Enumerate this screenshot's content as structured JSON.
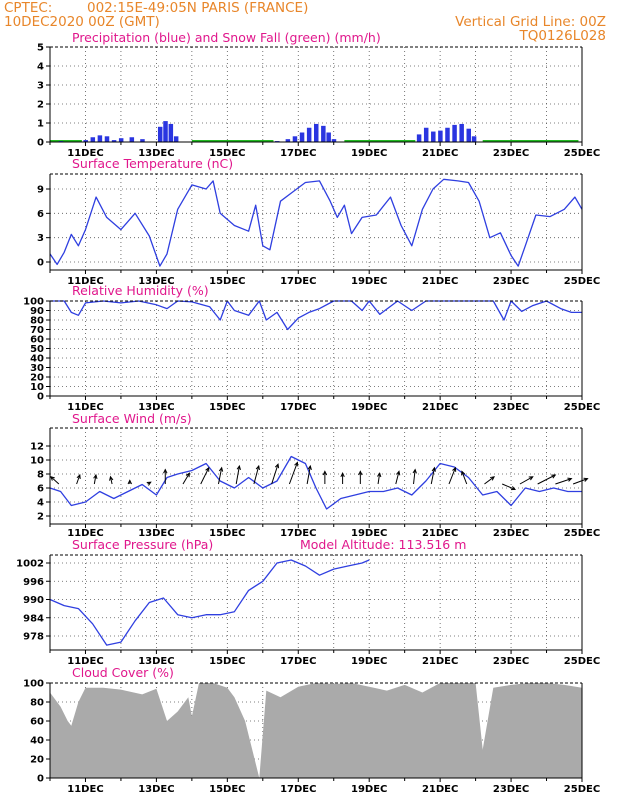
{
  "header": {
    "source": "CPTEC:",
    "location": "002:15E-49:05N   PARIS (FRANCE)",
    "date": "10DEC2020 00Z (GMT)",
    "grid_note": "Vertical Grid Line: 00Z",
    "code": "TQ0126L028"
  },
  "colors": {
    "header": "#e8862a",
    "title": "#e0178c",
    "line": "#2f3fe0",
    "precip": "#2a35e0",
    "snow": "#22bb22",
    "cloud": "#aaaaaa",
    "arrow": "#000000"
  },
  "date_labels": [
    "11DEC",
    "13DEC",
    "15DEC",
    "17DEC",
    "19DEC",
    "21DEC",
    "23DEC",
    "25DEC"
  ],
  "chart_data": [
    {
      "type": "bar",
      "title": "Precipitation (blue) and Snow Fall (green) (mm/h)",
      "x_range_days": [
        10,
        25
      ],
      "ylim": [
        0,
        5
      ],
      "yticks": [
        "0",
        "1",
        "2",
        "3",
        "4",
        "5"
      ],
      "x": [
        10.3,
        11.0,
        11.2,
        11.4,
        11.6,
        11.8,
        12.0,
        12.3,
        12.6,
        13.1,
        13.25,
        13.4,
        13.55,
        16.4,
        16.7,
        16.9,
        17.1,
        17.3,
        17.5,
        17.7,
        17.85,
        18.0,
        20.4,
        20.6,
        20.8,
        21.0,
        21.2,
        21.4,
        21.6,
        21.8,
        21.95
      ],
      "values": [
        0.05,
        0.1,
        0.25,
        0.35,
        0.3,
        0.1,
        0.2,
        0.25,
        0.15,
        0.8,
        1.1,
        0.95,
        0.3,
        0.05,
        0.15,
        0.3,
        0.5,
        0.75,
        0.95,
        0.85,
        0.5,
        0.15,
        0.4,
        0.75,
        0.55,
        0.6,
        0.75,
        0.9,
        0.95,
        0.7,
        0.3
      ],
      "snow_segments": [
        [
          10.0,
          10.9
        ],
        [
          14.0,
          16.3
        ],
        [
          18.3,
          20.3
        ],
        [
          22.2,
          24.9
        ]
      ]
    },
    {
      "type": "line",
      "title": "Surface Temperature (nC)",
      "x_range_days": [
        10,
        25
      ],
      "ylim": [
        -0.5,
        10.5
      ],
      "yticks": [
        "0",
        "3",
        "6",
        "9"
      ],
      "x": [
        10.0,
        10.2,
        10.4,
        10.6,
        10.8,
        11.0,
        11.3,
        11.6,
        12.0,
        12.4,
        12.8,
        13.1,
        13.3,
        13.6,
        14.0,
        14.4,
        14.6,
        14.8,
        15.2,
        15.6,
        15.8,
        16.0,
        16.2,
        16.5,
        16.8,
        17.2,
        17.6,
        17.9,
        18.1,
        18.3,
        18.5,
        18.8,
        19.2,
        19.6,
        19.9,
        20.2,
        20.5,
        20.8,
        21.1,
        21.5,
        21.8,
        22.1,
        22.4,
        22.7,
        23.0,
        23.2,
        23.4,
        23.7,
        24.1,
        24.5,
        24.8,
        25.0
      ],
      "values": [
        1.0,
        -0.3,
        1.2,
        3.4,
        2.0,
        4.0,
        8.0,
        5.5,
        4.0,
        6.0,
        3.2,
        -0.5,
        1.0,
        6.5,
        9.5,
        9.0,
        10.0,
        6.0,
        4.5,
        3.8,
        7.0,
        2.0,
        1.5,
        7.5,
        8.5,
        9.8,
        10.0,
        7.5,
        5.5,
        7.0,
        3.5,
        5.5,
        5.8,
        8.0,
        4.5,
        2.0,
        6.5,
        9.0,
        10.2,
        10.0,
        9.8,
        7.5,
        3.0,
        3.6,
        0.8,
        -0.5,
        2.0,
        5.8,
        5.6,
        6.5,
        8.0,
        6.5
      ]
    },
    {
      "type": "line",
      "title": "Relative Humidity (%)",
      "x_range_days": [
        10,
        25
      ],
      "ylim": [
        0,
        100
      ],
      "yticks": [
        "0",
        "10",
        "20",
        "30",
        "40",
        "50",
        "60",
        "70",
        "80",
        "90",
        "100"
      ],
      "x": [
        10.0,
        10.4,
        10.6,
        10.8,
        11.0,
        11.5,
        12.0,
        12.5,
        13.0,
        13.3,
        13.6,
        14.0,
        14.5,
        14.8,
        15.0,
        15.2,
        15.6,
        15.9,
        16.1,
        16.4,
        16.7,
        17.0,
        17.3,
        17.6,
        18.0,
        18.5,
        18.8,
        19.0,
        19.3,
        19.8,
        20.2,
        20.6,
        21.0,
        21.5,
        22.0,
        22.5,
        22.8,
        23.0,
        23.3,
        23.6,
        24.0,
        24.4,
        24.7,
        25.0
      ],
      "values": [
        100,
        100,
        88,
        85,
        98,
        100,
        98,
        100,
        96,
        92,
        100,
        99,
        94,
        80,
        100,
        90,
        85,
        100,
        80,
        88,
        70,
        82,
        88,
        92,
        100,
        100,
        90,
        100,
        86,
        100,
        90,
        100,
        100,
        100,
        100,
        100,
        80,
        100,
        89,
        95,
        100,
        92,
        88,
        88
      ]
    },
    {
      "type": "line",
      "title": "Surface Wind (m/s)",
      "x_range_days": [
        10,
        25
      ],
      "ylim": [
        1,
        12
      ],
      "yticks": [
        "2",
        "4",
        "6",
        "8",
        "10",
        "12"
      ],
      "x": [
        10.0,
        10.3,
        10.6,
        11.0,
        11.4,
        11.8,
        12.2,
        12.6,
        13.0,
        13.3,
        13.6,
        14.0,
        14.4,
        14.8,
        15.2,
        15.6,
        16.0,
        16.4,
        16.8,
        17.2,
        17.5,
        17.8,
        18.2,
        18.6,
        19.0,
        19.4,
        19.8,
        20.2,
        20.6,
        21.0,
        21.4,
        21.8,
        22.2,
        22.6,
        23.0,
        23.4,
        23.8,
        24.2,
        24.6,
        25.0
      ],
      "values": [
        6.0,
        5.5,
        3.5,
        4.0,
        5.5,
        4.5,
        5.5,
        6.5,
        5.0,
        7.5,
        8.0,
        8.5,
        9.5,
        7.0,
        6.0,
        7.5,
        6.0,
        7.0,
        10.5,
        9.5,
        6.0,
        3.0,
        4.5,
        5.0,
        5.5,
        5.5,
        6.0,
        5.0,
        7.0,
        9.5,
        9.0,
        7.5,
        5.0,
        5.5,
        3.5,
        6.0,
        5.5,
        6.0,
        5.5,
        5.5
      ],
      "arrows": {
        "x": [
          10.25,
          10.75,
          11.25,
          11.75,
          12.25,
          12.75,
          13.25,
          13.75,
          14.25,
          14.75,
          15.25,
          15.75,
          16.25,
          16.75,
          17.25,
          17.75,
          18.25,
          18.75,
          19.25,
          19.75,
          20.25,
          20.75,
          21.25,
          21.75,
          22.25,
          22.75,
          23.25,
          23.75,
          24.25,
          24.75
        ],
        "u": [
          -2.5,
          1.0,
          0.5,
          -0.5,
          0.0,
          1.0,
          0.0,
          2.0,
          2.5,
          1.0,
          1.0,
          1.5,
          2.0,
          2.5,
          1.0,
          0.0,
          0.0,
          0.0,
          0.5,
          1.0,
          0.5,
          1.0,
          2.0,
          -1.5,
          3.0,
          4.0,
          4.0,
          5.5,
          5.0,
          4.5
        ],
        "v": [
          2.0,
          2.5,
          2.5,
          2.0,
          1.0,
          0.5,
          4.0,
          3.0,
          4.5,
          4.5,
          5.0,
          5.0,
          5.5,
          6.0,
          5.0,
          3.5,
          3.0,
          3.5,
          3.0,
          3.5,
          4.0,
          4.5,
          4.5,
          3.5,
          2.0,
          -1.5,
          2.0,
          2.5,
          1.5,
          1.5
        ]
      }
    },
    {
      "type": "line",
      "title": "Surface Pressure (hPa)",
      "annotation": "Model Altitude: 113.516 m",
      "x_range_days": [
        10,
        25
      ],
      "ylim": [
        972,
        1005
      ],
      "yticks": [
        "978",
        "984",
        "990",
        "996",
        "1002"
      ],
      "x": [
        10.0,
        10.4,
        10.8,
        11.2,
        11.6,
        12.0,
        12.4,
        12.8,
        13.2,
        13.6,
        14.0,
        14.4,
        14.8,
        15.2,
        15.6,
        16.0,
        16.4,
        16.8,
        17.2,
        17.6,
        18.0,
        18.4,
        18.8,
        19.0
      ],
      "values": [
        990,
        988,
        987,
        982,
        975,
        976,
        983,
        989,
        990.5,
        985,
        984,
        985,
        985,
        986,
        993,
        996,
        1002,
        1003,
        1001,
        998,
        1000,
        1001,
        1002,
        1003
      ]
    },
    {
      "type": "area",
      "title": "Cloud Cover (%)",
      "x_range_days": [
        10,
        25
      ],
      "ylim": [
        0,
        100
      ],
      "yticks": [
        "0",
        "20",
        "40",
        "60",
        "80",
        "100"
      ],
      "x": [
        10.0,
        10.3,
        10.5,
        10.6,
        10.8,
        11.0,
        11.5,
        12.0,
        12.6,
        13.0,
        13.3,
        13.6,
        13.9,
        14.0,
        14.2,
        14.6,
        15.0,
        15.2,
        15.5,
        15.7,
        15.9,
        16.1,
        16.5,
        17.0,
        17.5,
        18.0,
        18.5,
        19.0,
        19.5,
        20.0,
        20.5,
        21.0,
        21.5,
        21.8,
        22.0,
        22.2,
        22.5,
        23.0,
        23.5,
        24.0,
        24.5,
        25.0
      ],
      "values": [
        90,
        75,
        60,
        55,
        80,
        95,
        95,
        93,
        88,
        94,
        60,
        70,
        85,
        65,
        100,
        100,
        95,
        85,
        60,
        30,
        0,
        92,
        85,
        96,
        100,
        99,
        100,
        96,
        92,
        98,
        90,
        100,
        100,
        100,
        100,
        30,
        95,
        98,
        100,
        100,
        98,
        95
      ]
    }
  ]
}
